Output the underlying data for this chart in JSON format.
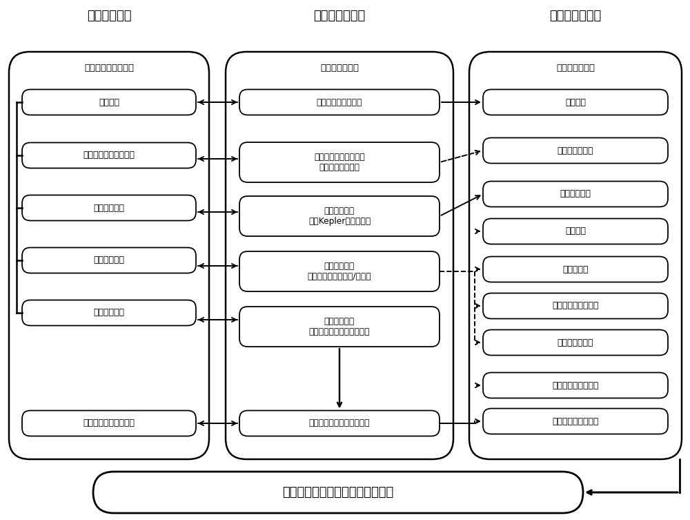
{
  "title": "光学遥感器接收的表观光谱辐亮度",
  "col1_header": "场景创建仿真",
  "col2_header": "指令和数据交互",
  "col3_header": "指标确定和分析",
  "col1_subheader": "场景仿真和数据生成",
  "col2_subheader": "指令和数据交互",
  "col3_subheader": "指标确定和分析",
  "col1_boxes": [
    "场景时间",
    "卫星和遥感器建模仿真",
    "卫星轨道仿真",
    "卫星姿态仿真",
    "观测区域仿真",
    "地物目标动态创建仿真"
  ],
  "col2_boxes": [
    "场景时间同步与约束",
    "卫星平台和遥感器参数\n（含安装矩阵等）",
    "卫星轨道参数\n（含Kepler轨道根数）",
    "卫星姿态参数\n（含姿态角或四元数/转序）",
    "特定区域参数\n（含观测区域经度和纬度）",
    "遥感器视场内地物目标位置"
  ],
  "col3_boxes": [
    "成像时刻",
    "遥感器谱段参数",
    "卫星轨道高度",
    "大气模式",
    "气溶胶模式",
    "观测区域高程或海拔",
    "地物目标反射率",
    "太阳天顶角和方位角",
    "观测天顶角和方位角"
  ],
  "bg_color": "#ffffff"
}
